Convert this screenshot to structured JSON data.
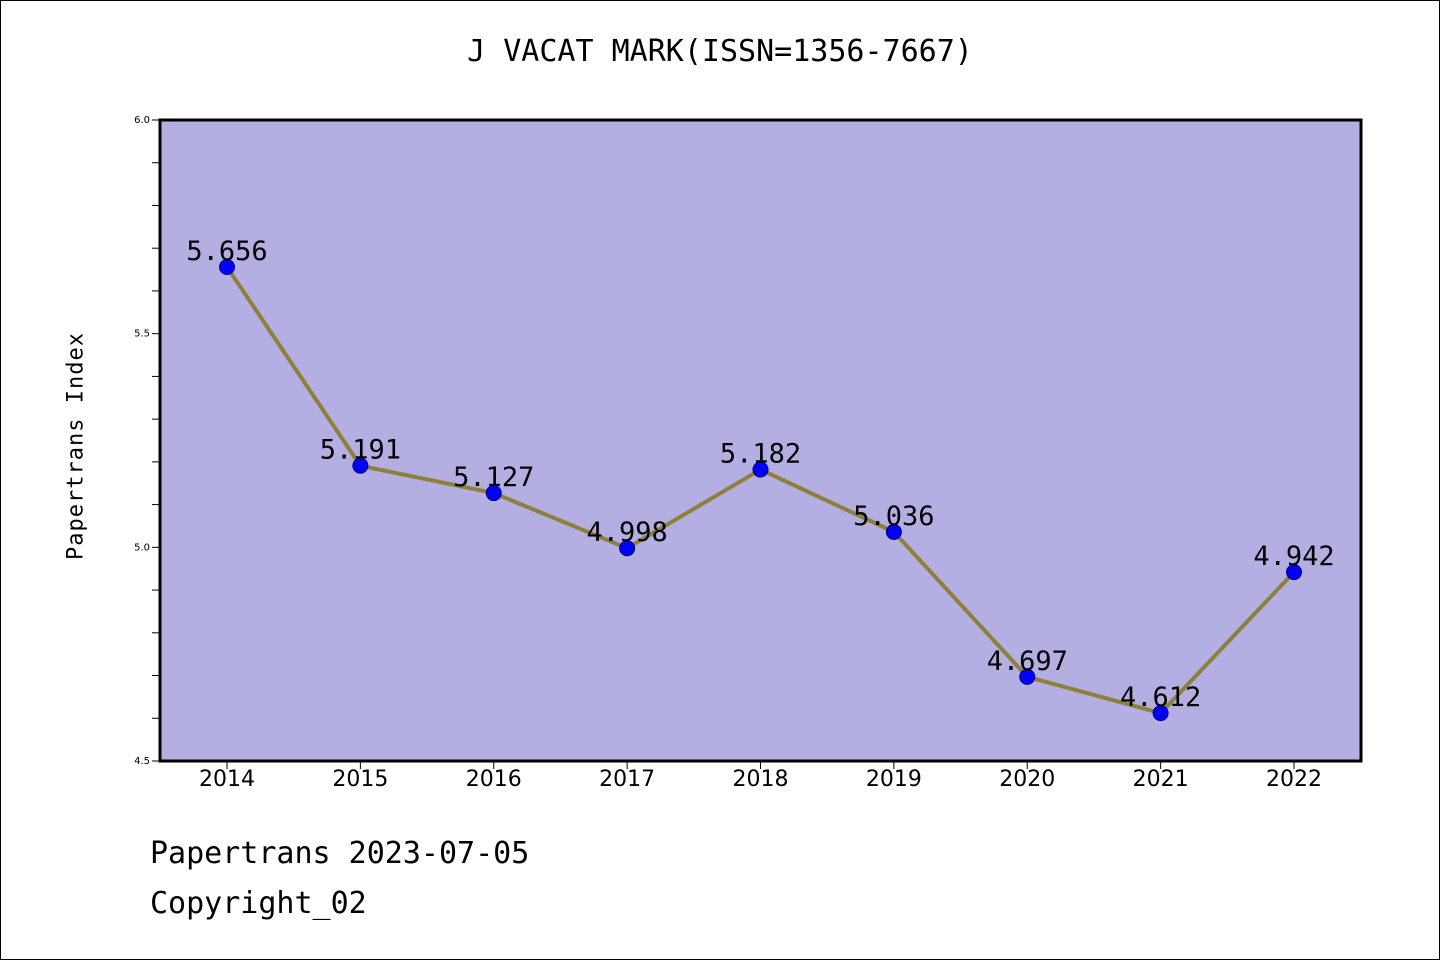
{
  "title": "J VACAT MARK(ISSN=1356-7667)",
  "footer": {
    "date_line": "Papertrans 2023-07-05",
    "copyright": "Copyright_02"
  },
  "colors": {
    "plot_background": "#b4afe3",
    "line": "#8f7f3a",
    "marker": "#0000ff",
    "axis": "#000000"
  },
  "chart_data": {
    "type": "line",
    "title": "J VACAT MARK(ISSN=1356-7667)",
    "xlabel": "",
    "ylabel": "Papertrans Index",
    "x": [
      "2014",
      "2015",
      "2016",
      "2017",
      "2018",
      "2019",
      "2020",
      "2021",
      "2022"
    ],
    "series": [
      {
        "values": [
          5.656,
          5.191,
          5.127,
          4.998,
          5.182,
          5.036,
          4.697,
          4.612,
          4.942
        ],
        "labels": [
          "5.656",
          "5.191",
          "5.127",
          "4.998",
          "5.182",
          "5.036",
          "4.697",
          "4.612",
          "4.942"
        ]
      }
    ],
    "ylim": [
      4.5,
      6.0
    ],
    "yticks": [
      "4.5",
      "5.0",
      "5.5",
      "6.0"
    ],
    "y_minor_step": 0.1,
    "grid": false,
    "legend": "none"
  }
}
